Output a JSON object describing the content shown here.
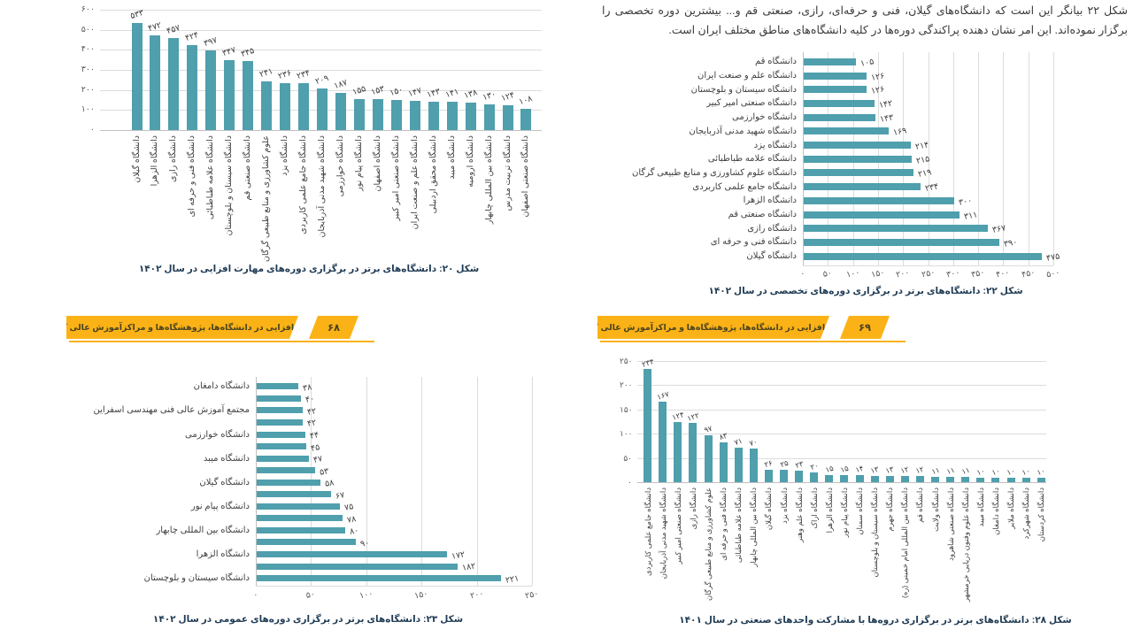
{
  "page": {
    "background": "#ffffff"
  },
  "colors": {
    "bar": "#4f9fad",
    "grid": "#dcdcdc",
    "axis": "#c0c0c0",
    "value_text": "#3f3f3f",
    "tick_text": "#595959",
    "label_text": "#3f3f3f",
    "caption_text": "#1f3b54",
    "paragraph_text": "#3a3a3a",
    "banner": "#fbb216",
    "banner_text": "#4a4420"
  },
  "paragraph": "شکل ۲۲ بیانگر این است که دانشگاه‌های گیلان، فنی و حرفه‌ای، رازی، صنعتی قم و... بیشترین دوره تخصصی را برگزار نموده‌اند. این امر نشان دهنده پراکندگی دوره‌ها در کلیه دانشگاه‌های مناطق مختلف ایران است.",
  "banner": {
    "text": "مهارت‌افزایی در دانشگاه‌ها، پژوهشگاه‌ها و مراکزآموزش عالی کشور",
    "left_page_number": "۶۸",
    "right_page_number": "۶۹"
  },
  "chart_data": [
    {
      "id": "figure-20-skill-building-courses",
      "type": "bar",
      "orientation": "vertical",
      "title": "شکل ۲۰: دانشگاه‌های برتر در برگزاری دوره‌های مهارت افزایی در سال ۱۴۰۲",
      "ylim": [
        0,
        600
      ],
      "ytick_step": 100,
      "gridlines": true,
      "categories": [
        "دانشگاه گیلان",
        "دانشگاه الزهرا",
        "دانشگاه رازی",
        "دانشگاه فنی و حرفه ای",
        "دانشگاه علامه طباطبائی",
        "دانشگاه سیستان و بلوچستان",
        "دانشگاه صنعتی قم",
        "علوم کشاورزی و منابع طبیعی گرگان",
        "دانشگاه یزد",
        "دانشگاه جامع علمی کاربردی",
        "دانشگاه شهید مدنی آذربایجان",
        "دانشگاه خوارزمی",
        "دانشگاه پیام نور",
        "دانشگاه اصفهان",
        "دانشگاه صنعتی امیر کبیر",
        "دانشگاه علم و صنعت ایران",
        "دانشگاه محقق اردبیلی",
        "دانشگاه میبد",
        "دانشگاه ارومیه",
        "دانشگاه بین المللی چابهار",
        "دانشگاه تربیت مدرس",
        "دانشگاه صنعتی اصفهان"
      ],
      "values": [
        533,
        472,
        457,
        424,
        397,
        347,
        345,
        241,
        236,
        234,
        209,
        187,
        155,
        153,
        150,
        147,
        143,
        141,
        138,
        130,
        124,
        108
      ]
    },
    {
      "id": "figure-22-specialized-courses",
      "type": "bar",
      "orientation": "horizontal",
      "title": "شکل ۲۲: دانشگاه‌های برتر در برگزاری دوره‌های تخصصی در سال ۱۴۰۲",
      "xlim": [
        0,
        500
      ],
      "xtick_step": 50,
      "gridlines": true,
      "categories": [
        "دانشگاه قم",
        "دانشگاه علم و صنعت ایران",
        "دانشگاه سیستان و بلوچستان",
        "دانشگاه صنعتی امیر کبیر",
        "دانشگاه خوارزمی",
        "دانشگاه شهید مدنی آذربایجان",
        "دانشگاه یزد",
        "دانشگاه علامه طباطبائی",
        "دانشگاه علوم کشاورزی و منابع طبیعی گرگان",
        "دانشگاه جامع علمی کاربردی",
        "دانشگاه الزهرا",
        "دانشگاه صنعتی قم",
        "دانشگاه رازی",
        "دانشگاه فنی و حرفه ای",
        "دانشگاه گیلان"
      ],
      "values": [
        105,
        126,
        126,
        142,
        143,
        169,
        214,
        215,
        219,
        234,
        300,
        311,
        367,
        390,
        475
      ]
    },
    {
      "id": "figure-23-general-courses",
      "type": "bar",
      "orientation": "horizontal",
      "title": "شکل ۲۳: دانشگاه‌های برتر در برگزاری دوره‌های عمومی در سال ۱۴۰۲",
      "xlim": [
        0,
        250
      ],
      "xtick_step": 50,
      "gridlines": true,
      "categories": [
        "دانشگاه دامغان",
        "",
        "مجتمع آموزش عالی فنی مهندسی اسفراین",
        "",
        "دانشگاه خوارزمی",
        "",
        "دانشگاه میبد",
        "",
        "دانشگاه گیلان",
        "",
        "دانشگاه پیام نور",
        "",
        "دانشگاه بین المللی چابهار",
        "",
        "دانشگاه الزهرا",
        "",
        "دانشگاه سیستان و بلوچستان"
      ],
      "values": [
        38,
        40,
        42,
        42,
        44,
        45,
        47,
        53,
        58,
        67,
        75,
        78,
        80,
        90,
        172,
        182,
        221
      ]
    },
    {
      "id": "figure-28-industry-partnership-courses",
      "type": "bar",
      "orientation": "vertical",
      "title": "شکل ۲۸: دانشگاه‌های برتر در برگزاری دروه‌ها با مشارکت واحدهای صنعتی در سال ۱۴۰۱",
      "ylim": [
        0,
        250
      ],
      "ytick_step": 50,
      "gridlines": true,
      "categories": [
        "دانشگاه جامع علمی کاربردی",
        "دانشگاه شهید مدنی آذربایجان",
        "دانشگاه صنعتی امیر کبیر",
        "دانشگاه رازی",
        "علوم کشاورزی و منابع طبیعی گرگان",
        "دانشگاه فنی و حرفه ای",
        "دانشگاه علامه طباطبائی",
        "دانشگاه بین المللی چابهار",
        "دانشگاه گیلان",
        "دانشگاه یزد",
        "دانشگاه علم وهنر",
        "دانشگاه اراک",
        "دانشگاه الزهرا",
        "دانشگاه پیام نور",
        "دانشگاه سمنان",
        "دانشگاه سیستان و بلوچستان",
        "دانشگاه جهرم",
        "دانشگاه بین المللی امام خمینی (ره)",
        "دانشگاه قم",
        "دانشگاه ولایت",
        "دانشگاه صنعتی شاهرود",
        "دانشگاه علوم وفنون دریایی خرمشهر",
        "دانشگاه میبد",
        "دانشگاه دامغان",
        "دانشگاه ملایر",
        "دانشگاه شهرکرد",
        "دانشگاه کردستان"
      ],
      "values": [
        234,
        167,
        124,
        122,
        97,
        83,
        71,
        70,
        26,
        25,
        23,
        20,
        15,
        15,
        14,
        13,
        13,
        12,
        12,
        11,
        11,
        11,
        10,
        10,
        10,
        10,
        10
      ]
    }
  ]
}
